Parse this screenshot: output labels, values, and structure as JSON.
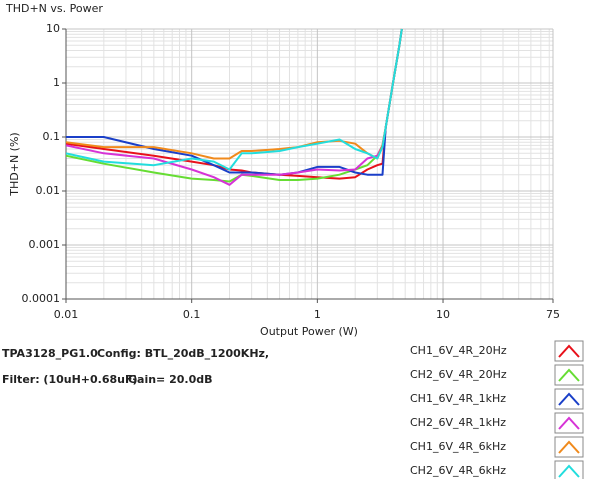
{
  "chart_data": {
    "type": "line",
    "title": "THD+N vs. Power",
    "x_label": "Output Power (W)",
    "y_label": "THD+N (%)",
    "x_scale": "log",
    "y_scale": "log",
    "grid": true,
    "minor_grid": true,
    "xlim": [
      0.01,
      75
    ],
    "xticks": [
      0.01,
      0.1,
      1,
      10,
      75
    ],
    "ylim": [
      0.0001,
      10
    ],
    "yticks": [
      0.0001,
      0.001,
      0.01,
      0.1,
      1,
      10
    ],
    "annotations": [
      "TPA3128_PG1.0",
      "Config: BTL_20dB_1200KHz,",
      "Filter: (10uH+0.68uF)",
      "Gain= 20.0dB"
    ],
    "legend": "right",
    "x": [
      0.01,
      0.02,
      0.05,
      0.1,
      0.15,
      0.2,
      0.25,
      0.3,
      0.5,
      0.7,
      1,
      1.5,
      2,
      2.5,
      3,
      3.3,
      3.5,
      4,
      4.5,
      4.7
    ],
    "series": [
      {
        "name": "CH1_6V_4R_20Hz",
        "color": "#e8101a",
        "values": [
          0.075,
          0.06,
          0.045,
          0.035,
          0.03,
          0.025,
          0.024,
          0.022,
          0.02,
          0.019,
          0.018,
          0.017,
          0.018,
          0.025,
          0.03,
          0.032,
          0.15,
          1,
          5,
          10
        ]
      },
      {
        "name": "CH2_6V_4R_20Hz",
        "color": "#66dd33",
        "values": [
          0.045,
          0.032,
          0.022,
          0.017,
          0.016,
          0.015,
          0.02,
          0.019,
          0.016,
          0.016,
          0.017,
          0.02,
          0.025,
          0.03,
          0.045,
          0.07,
          0.15,
          1,
          5,
          10
        ]
      },
      {
        "name": "CH1_6V_4R_1kHz",
        "color": "#1a3fc8",
        "values": [
          0.1,
          0.1,
          0.06,
          0.045,
          0.03,
          0.022,
          0.022,
          0.022,
          0.02,
          0.022,
          0.028,
          0.028,
          0.022,
          0.02,
          0.02,
          0.02,
          0.15,
          1,
          5,
          10
        ]
      },
      {
        "name": "CH2_6V_4R_1kHz",
        "color": "#d633d6",
        "values": [
          0.07,
          0.05,
          0.04,
          0.025,
          0.018,
          0.013,
          0.02,
          0.02,
          0.02,
          0.022,
          0.025,
          0.024,
          0.025,
          0.04,
          0.045,
          0.07,
          0.15,
          1,
          5,
          10
        ]
      },
      {
        "name": "CH1_6V_4R_6kHz",
        "color": "#f08a1c",
        "values": [
          0.08,
          0.065,
          0.065,
          0.05,
          0.04,
          0.04,
          0.055,
          0.055,
          0.06,
          0.065,
          0.08,
          0.085,
          0.075,
          0.05,
          0.04,
          0.07,
          0.15,
          1,
          5,
          10
        ]
      },
      {
        "name": "CH2_6V_4R_6kHz",
        "color": "#22dddd",
        "values": [
          0.05,
          0.035,
          0.03,
          0.04,
          0.035,
          0.025,
          0.05,
          0.05,
          0.055,
          0.065,
          0.075,
          0.09,
          0.06,
          0.05,
          0.04,
          0.065,
          0.15,
          1,
          5,
          10
        ]
      }
    ]
  }
}
